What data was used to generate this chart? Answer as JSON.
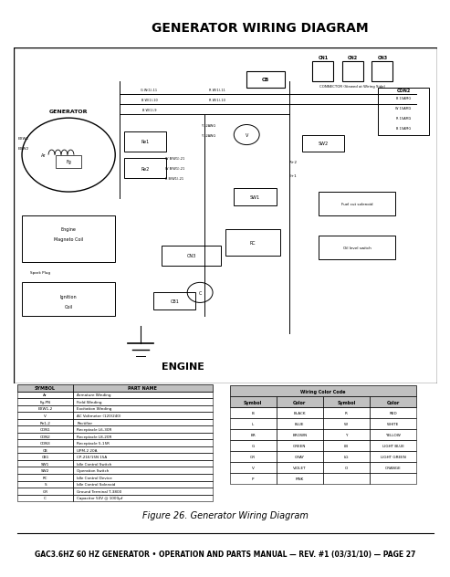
{
  "title": "GENERATOR WIRING DIAGRAM",
  "figure_caption": "Figure 26. Generator Wiring Diagram",
  "footer": "GAC3.6HZ 60 HZ GENERATOR • OPERATION AND PARTS MANUAL — REV. #1 (03/31/10) — PAGE 27",
  "symbol_table": {
    "headers": [
      "SYMBOL",
      "PART NAME"
    ],
    "rows": [
      [
        "Ar",
        "Armature Winding"
      ],
      [
        "Fg-PN",
        "Field Winding"
      ],
      [
        "EXW1-2",
        "Excitation Winding"
      ],
      [
        "V",
        "AC Voltmeter (120/240)"
      ],
      [
        "Re1-2",
        "Rectifier"
      ],
      [
        "CON1",
        "Receptacle L6-30R"
      ],
      [
        "CON2",
        "Receptacle L8-20R"
      ],
      [
        "CON3",
        "Receptacle 5-15R"
      ],
      [
        "CB",
        "UPM-2 20A"
      ],
      [
        "CB1",
        "CP-21E/15N 15A"
      ],
      [
        "SW1",
        "Idle Control Switch"
      ],
      [
        "SW2",
        "Operation Switch"
      ],
      [
        "RC",
        "Idle Control Device"
      ],
      [
        "S",
        "Idle Control Solenoid"
      ],
      [
        "GR",
        "Ground Terminal T-3800"
      ],
      [
        "C",
        "Capacitor 50V @ 1000μf"
      ]
    ]
  },
  "color_table": {
    "title": "Wiring Color Code",
    "headers": [
      "Symbol",
      "Color",
      "Symbol",
      "Color"
    ],
    "rows": [
      [
        "B",
        "BLACK",
        "R",
        "RED"
      ],
      [
        "L",
        "BLUE",
        "W",
        "WHITE"
      ],
      [
        "BR",
        "BROWN",
        "Y",
        "YELLOW"
      ],
      [
        "G",
        "GREEN",
        "LB",
        "LIGHT BLUE"
      ],
      [
        "GR",
        "GRAY",
        "LG",
        "LIGHT GREEN"
      ],
      [
        "V",
        "VIOLET",
        "O",
        "ORANGE"
      ],
      [
        "P",
        "PINK",
        "",
        ""
      ]
    ]
  },
  "bg_color": "#ffffff",
  "title_color": "#000000"
}
